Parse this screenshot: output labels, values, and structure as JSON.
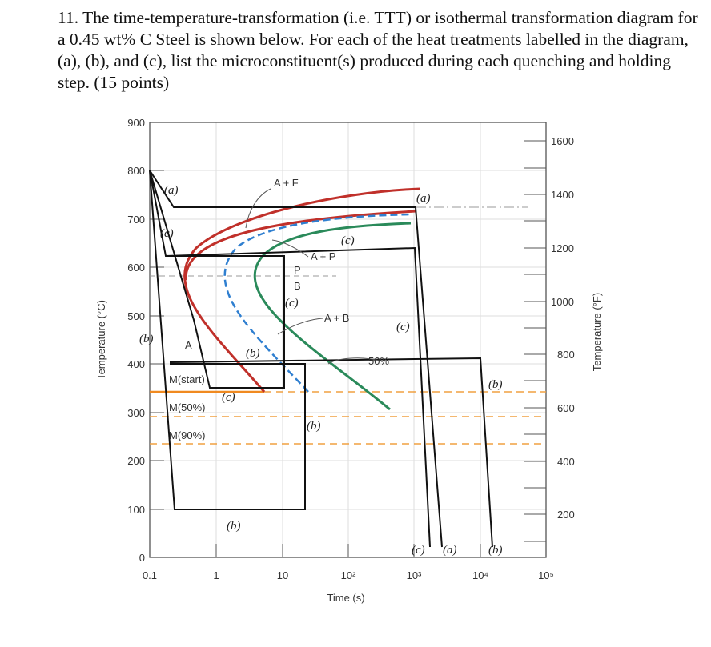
{
  "question": {
    "text": "11. The time-temperature-transformation (i.e. TTT) or isothermal transformation diagram for a 0.45 wt% C Steel is shown below. For each of the heat treatments labelled in the diagram, (a), (b), and (c), list the microconstituent(s) produced during each quenching and holding step. (15 points)"
  },
  "diagram": {
    "y_left_label": "Temperature (°C)",
    "y_right_label": "Temperature (°F)",
    "x_label": "Time (s)",
    "y_left_ticks": [
      "900",
      "800",
      "700",
      "600",
      "500",
      "400",
      "300",
      "200",
      "100",
      "0"
    ],
    "y_right_ticks": [
      "1600",
      "1400",
      "1200",
      "1000",
      "800",
      "600",
      "400",
      "200"
    ],
    "x_ticks": [
      "0.1",
      "1",
      "10",
      "10²",
      "10³",
      "10⁴",
      "10⁵"
    ],
    "phase_labels": {
      "af": "A + F",
      "ap": "A + P",
      "p": "P",
      "b": "B",
      "ab": "A + B",
      "a": "A",
      "fifty": "50%",
      "ms": "M(start)",
      "m50": "M(50%)",
      "m90": "M(90%)"
    },
    "path_labels": {
      "a": "(a)",
      "b": "(b)",
      "c": "(c)"
    },
    "colors": {
      "start_curve": "#c0302a",
      "end_curve": "#2a8a5a",
      "fifty_curve": "#2f7fd0",
      "martensite": "#f0a040"
    }
  }
}
